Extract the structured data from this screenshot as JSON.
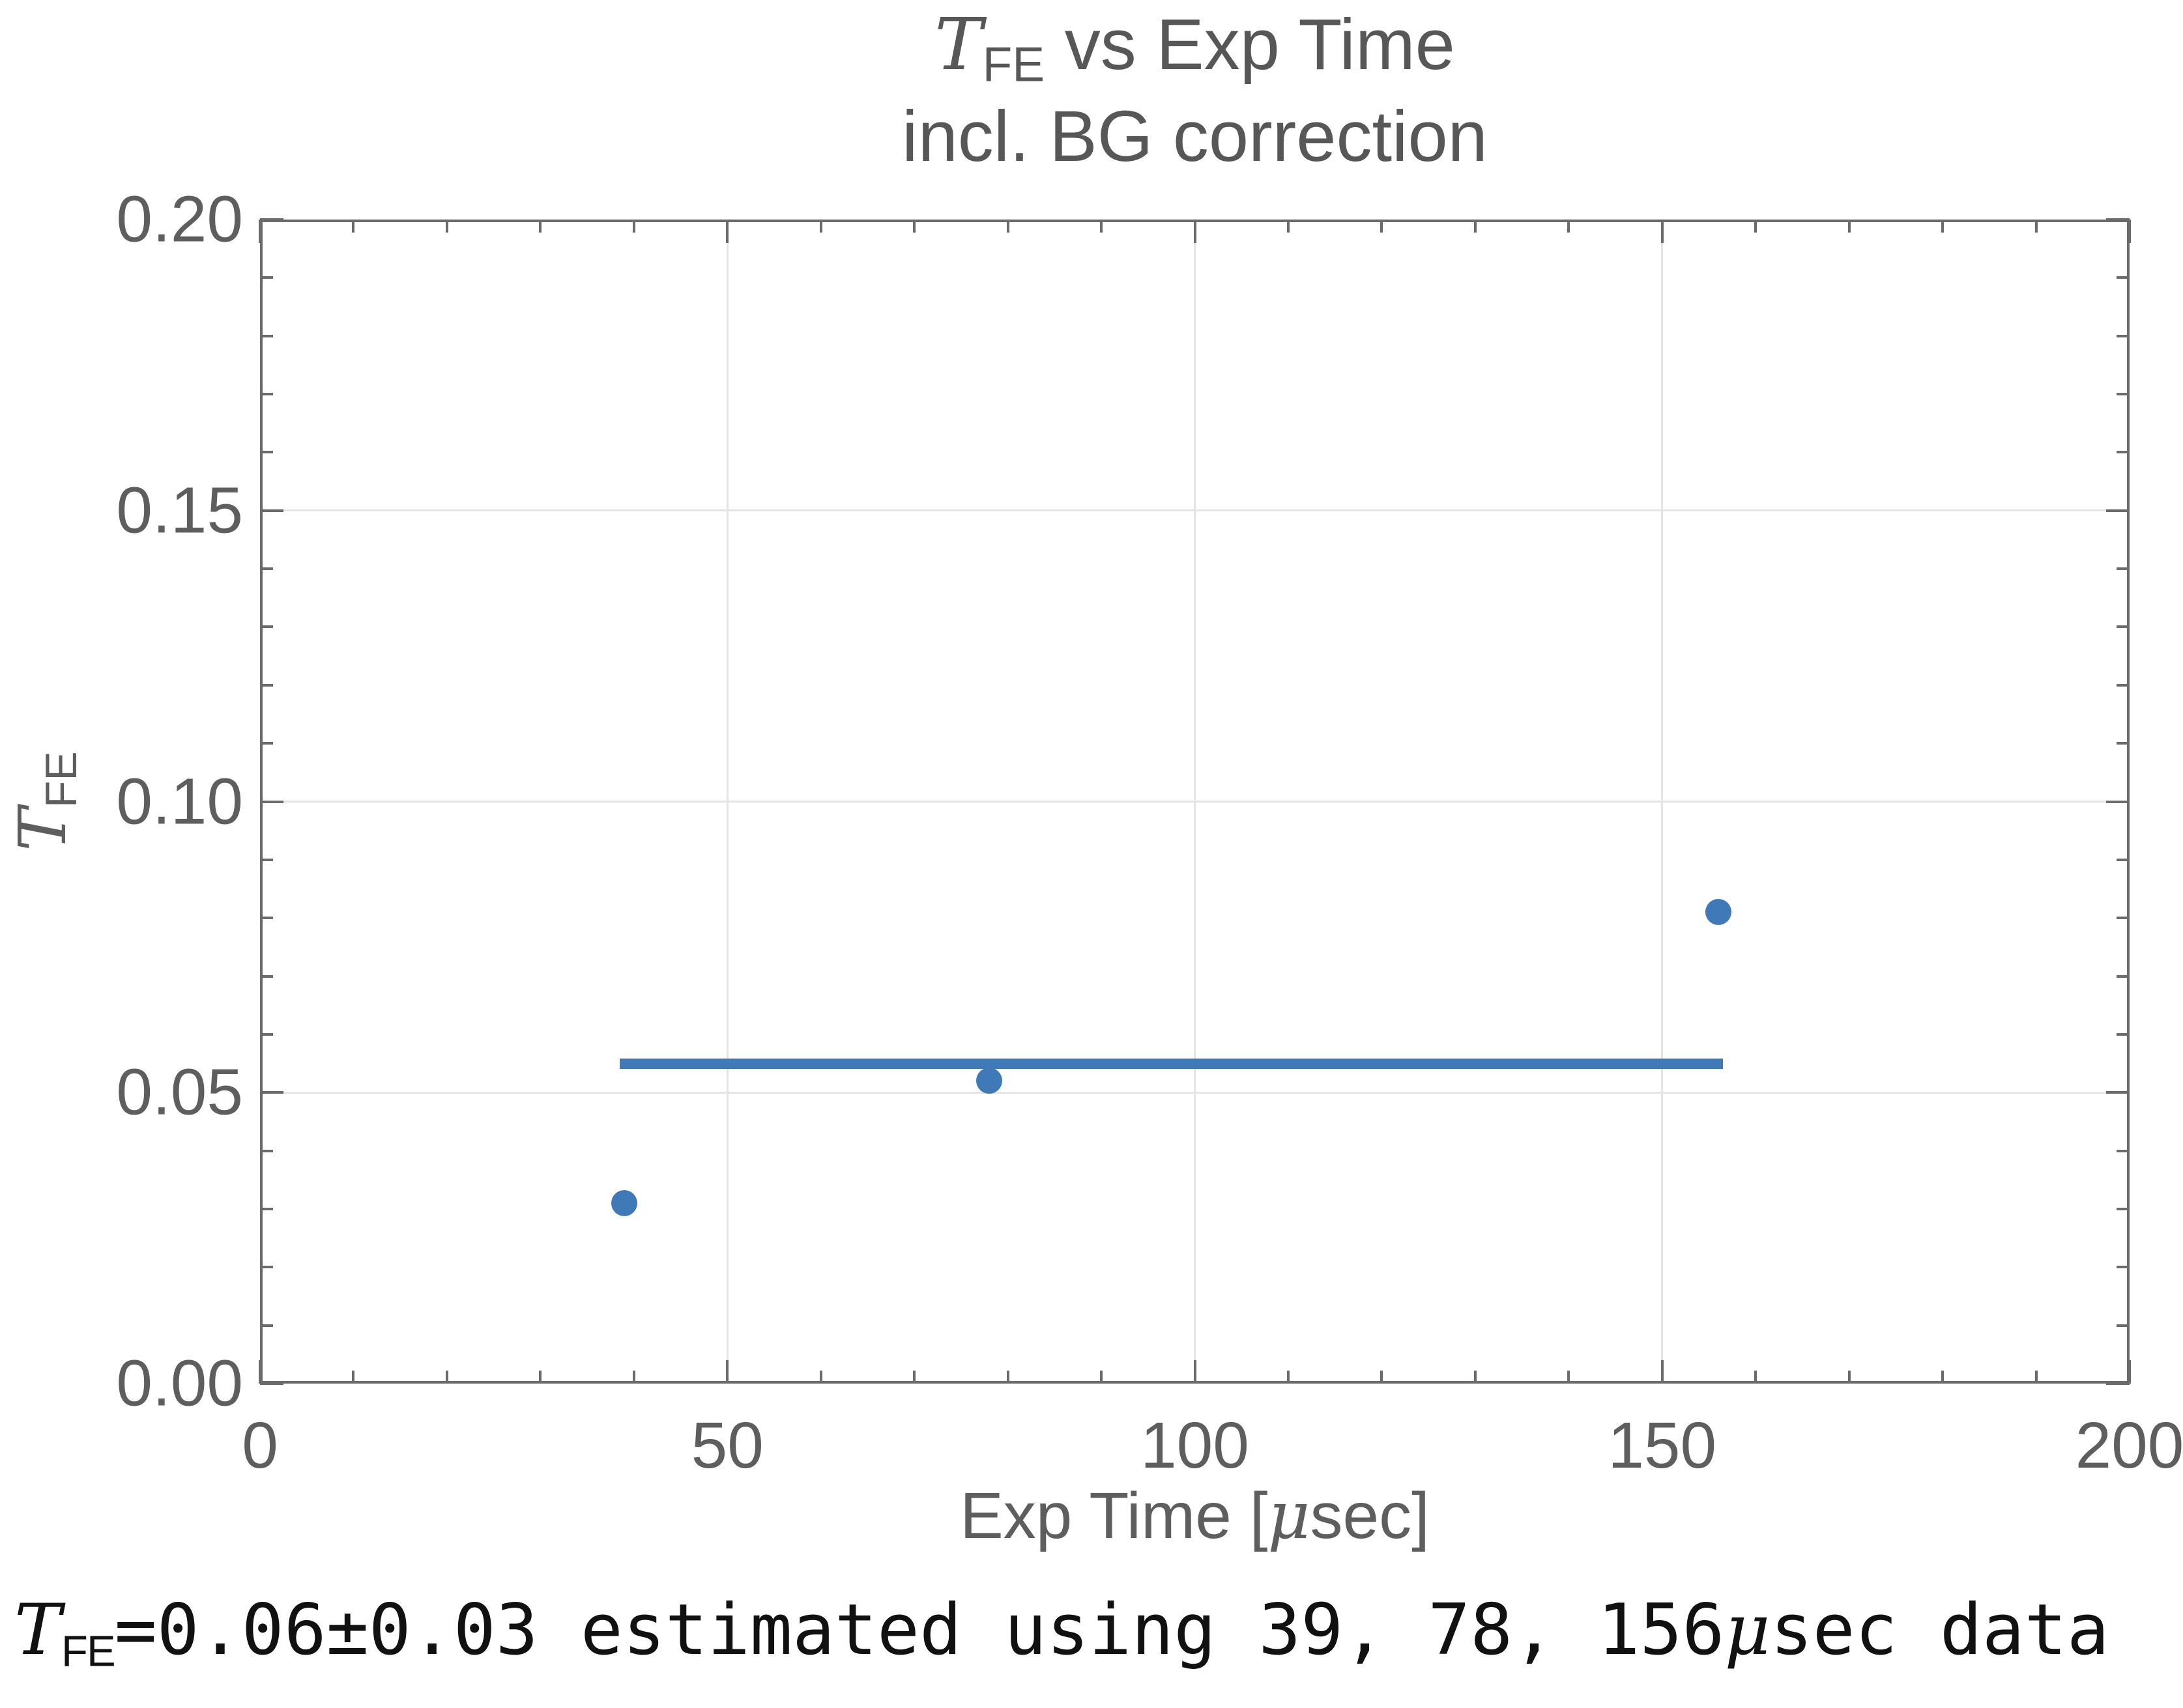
{
  "title": {
    "symbol": "T",
    "symbol_sub": "FE",
    "rest": " vs Exp Time",
    "subtitle": "incl. BG correction"
  },
  "axes": {
    "x": {
      "label_pre": "Exp Time [",
      "label_mu": "μ",
      "label_post": "sec]",
      "min": 0,
      "max": 200,
      "major_ticks": [
        {
          "value": 0,
          "label": "0"
        },
        {
          "value": 50,
          "label": "50"
        },
        {
          "value": 100,
          "label": "100"
        },
        {
          "value": 150,
          "label": "150"
        },
        {
          "value": 200,
          "label": "200"
        }
      ],
      "minor_step": 10,
      "grid_values": [
        50,
        100,
        150
      ]
    },
    "y": {
      "label_symbol": "T",
      "label_sub": "FE",
      "min": 0,
      "max": 0.2,
      "major_ticks": [
        {
          "value": 0,
          "label": "0.00"
        },
        {
          "value": 0.05,
          "label": "0.05"
        },
        {
          "value": 0.1,
          "label": "0.10"
        },
        {
          "value": 0.15,
          "label": "0.15"
        },
        {
          "value": 0.2,
          "label": "0.20"
        }
      ],
      "minor_step": 0.01,
      "grid_values": [
        0.05,
        0.1,
        0.15
      ]
    }
  },
  "chart_data": {
    "type": "scatter",
    "title": "T_FE vs Exp Time",
    "subtitle": "incl. BG correction",
    "xlabel": "Exp Time [μsec]",
    "ylabel": "T_FE",
    "xlim": [
      0,
      200
    ],
    "ylim": [
      0,
      0.2
    ],
    "grid": "on-major",
    "legend": "none",
    "points": [
      {
        "x": 39,
        "y": 0.031
      },
      {
        "x": 78,
        "y": 0.052
      },
      {
        "x": 156,
        "y": 0.081
      }
    ],
    "fit_line": {
      "y": 0.055,
      "x_start": 38.5,
      "x_end": 156.5
    },
    "colors": {
      "series": "#4079B8",
      "grid": "#e4e4e4",
      "frame": "#6b6b6b",
      "tick_text": "#5e5e5e",
      "title_text": "#575757",
      "caption_text": "#111111"
    }
  },
  "caption": {
    "symbol": "T",
    "symbol_sub": "FE",
    "body": "=0.06±0.03 estimated using 39, 78, 156",
    "mu": "μ",
    "tail": "sec data"
  }
}
